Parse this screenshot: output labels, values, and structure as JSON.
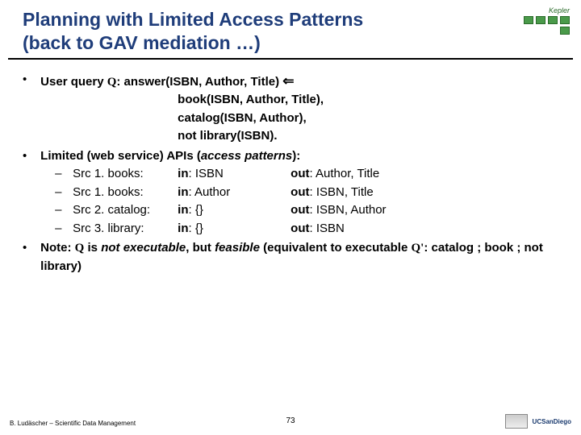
{
  "title_line1": "Planning with Limited Access Patterns",
  "title_line2": "(back to GAV mediation …)",
  "logo_label": "Kepler",
  "bullets": {
    "b1": {
      "lead_bold": "User query ",
      "q": "Q",
      "after_q": ": answer(ISBN, Author, Title) ",
      "arrow": "⇐",
      "line2": "book(ISBN, Author, Title),",
      "line3": "catalog(ISBN, Author),",
      "line4": "not library(ISBN)."
    },
    "b2": {
      "lead_bold": "Limited (web service) APIs (",
      "italic": "access patterns",
      "after": "):",
      "rows": [
        {
          "src": "Src 1. books:",
          "in_lbl": "in",
          "in_val": ": ISBN",
          "out_lbl": "out",
          "out_val": ": Author, Title"
        },
        {
          "src": "Src 1. books:",
          "in_lbl": "in",
          "in_val": ": Author",
          "out_lbl": "out",
          "out_val": ": ISBN, Title"
        },
        {
          "src": "Src 2. catalog:",
          "in_lbl": "in",
          "in_val": ": {}",
          "out_lbl": "out",
          "out_val": ": ISBN, Author"
        },
        {
          "src": "Src 3. library:",
          "in_lbl": "in",
          "in_val": ": {}",
          "out_lbl": "out",
          "out_val": ": ISBN"
        }
      ]
    },
    "b3": {
      "p1": "Note: ",
      "q": "Q",
      "p2": " is ",
      "ital1": "not executable",
      "p3": ", but ",
      "ital2": "feasible",
      "p4": " (equivalent to executable ",
      "qp": "Q'",
      "p5": ": catalog ; book ; not library)"
    }
  },
  "footer": {
    "left": "B. Ludäscher – Scientific Data Management",
    "page": "73",
    "ucsd": "UCSanDiego"
  }
}
